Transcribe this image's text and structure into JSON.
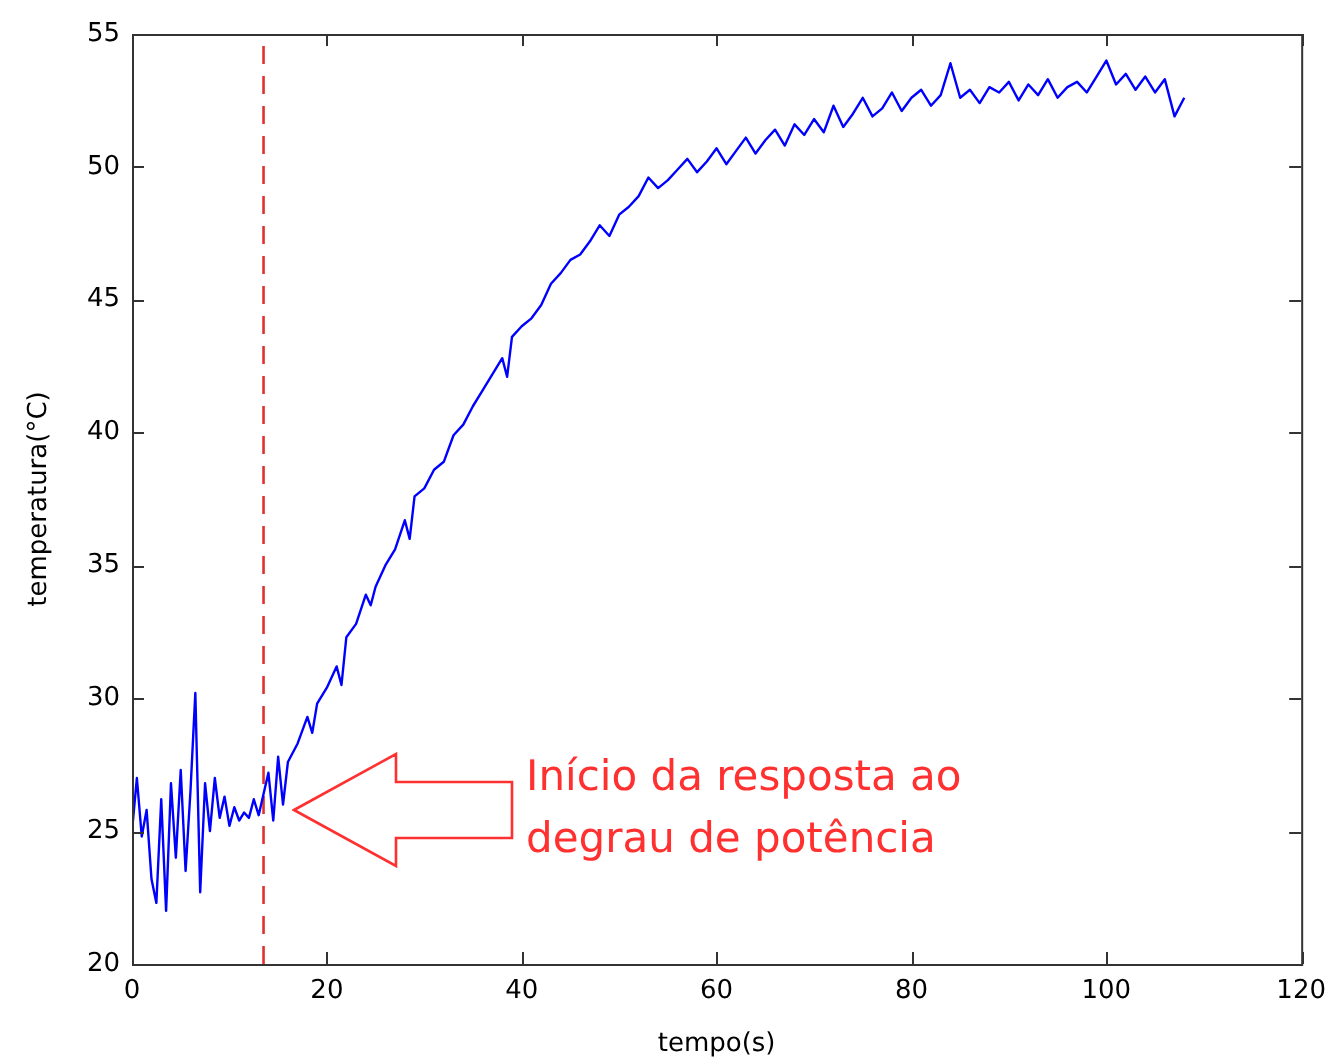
{
  "chart_data": {
    "type": "line",
    "xlabel": "tempo(s)",
    "ylabel": "temperatura(°C)",
    "xlim": [
      0,
      120
    ],
    "xticks": [
      0,
      20,
      40,
      60,
      80,
      100,
      120
    ],
    "ylim": [
      20,
      55
    ],
    "yticks": [
      20,
      25,
      30,
      35,
      40,
      45,
      50,
      55
    ],
    "grid": false,
    "legend": false,
    "marker": "none",
    "line_style": "solid",
    "x": [
      0,
      0.5,
      1,
      1.5,
      2,
      2.5,
      3,
      3.5,
      4,
      4.5,
      5,
      5.5,
      6,
      6.5,
      7,
      7.5,
      8,
      8.5,
      9,
      9.5,
      10,
      10.5,
      11,
      11.5,
      12,
      12.5,
      13,
      13.5,
      14,
      14.5,
      15,
      15.5,
      16,
      17,
      18,
      18.5,
      19,
      20,
      21,
      21.5,
      22,
      23,
      24,
      24.5,
      25,
      26,
      27,
      28,
      28.5,
      29,
      30,
      31,
      32,
      33,
      34,
      35,
      36,
      37,
      38,
      38.5,
      39,
      40,
      41,
      42,
      43,
      44,
      45,
      46,
      47,
      48,
      49,
      50,
      51,
      52,
      53,
      54,
      55,
      56,
      57,
      58,
      59,
      60,
      61,
      62,
      63,
      64,
      65,
      66,
      67,
      68,
      69,
      70,
      71,
      72,
      73,
      74,
      75,
      76,
      77,
      78,
      79,
      80,
      81,
      82,
      83,
      84,
      85,
      86,
      87,
      88,
      89,
      90,
      91,
      92,
      93,
      94,
      95,
      96,
      97,
      98,
      99,
      100,
      101,
      102,
      103,
      104,
      105,
      106,
      107,
      108
    ],
    "series": [
      {
        "color": "#0000ff",
        "values": [
          25.0,
          27.0,
          24.8,
          25.8,
          23.2,
          22.3,
          26.2,
          22.0,
          26.8,
          24.0,
          27.3,
          23.5,
          26.5,
          30.2,
          22.7,
          26.8,
          25.0,
          27.0,
          25.5,
          26.3,
          25.2,
          25.9,
          25.4,
          25.7,
          25.5,
          26.2,
          25.6,
          26.4,
          27.2,
          25.4,
          27.8,
          26.0,
          27.6,
          28.3,
          29.3,
          28.7,
          29.8,
          30.4,
          31.2,
          30.5,
          32.3,
          32.8,
          33.9,
          33.5,
          34.2,
          35.0,
          35.6,
          36.7,
          36.0,
          37.6,
          37.9,
          38.6,
          38.9,
          39.9,
          40.3,
          41.0,
          41.6,
          42.2,
          42.8,
          42.1,
          43.6,
          44.0,
          44.3,
          44.8,
          45.6,
          46.0,
          46.5,
          46.7,
          47.2,
          47.8,
          47.4,
          48.2,
          48.5,
          48.9,
          49.6,
          49.2,
          49.5,
          49.9,
          50.3,
          49.8,
          50.2,
          50.7,
          50.1,
          50.6,
          51.1,
          50.5,
          51.0,
          51.4,
          50.8,
          51.6,
          51.2,
          51.8,
          51.3,
          52.3,
          51.5,
          52.0,
          52.6,
          51.9,
          52.2,
          52.8,
          52.1,
          52.6,
          52.9,
          52.3,
          52.7,
          53.9,
          52.6,
          52.9,
          52.4,
          53.0,
          52.8,
          53.2,
          52.5,
          53.1,
          52.7,
          53.3,
          52.6,
          53.0,
          53.2,
          52.8,
          53.4,
          54.0,
          53.1,
          53.5,
          52.9,
          53.4,
          52.8,
          53.3,
          51.9,
          52.6
        ]
      }
    ],
    "ref_lines": [
      {
        "axis": "x",
        "value": 13.5,
        "color": "#e03030",
        "line_style": "dashed"
      }
    ],
    "annotations": [
      "Início da resposta ao degrau de potência"
    ]
  }
}
